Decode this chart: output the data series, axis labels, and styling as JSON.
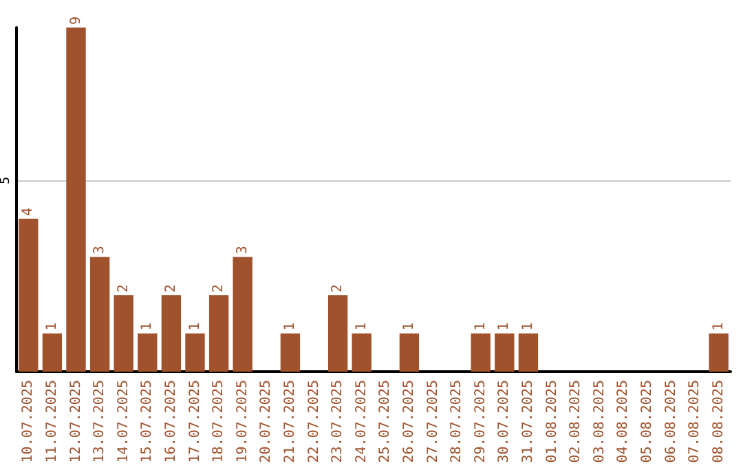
{
  "chart_data": {
    "type": "bar",
    "categories": [
      "10.07.2025",
      "11.07.2025",
      "12.07.2025",
      "13.07.2025",
      "14.07.2025",
      "15.07.2025",
      "16.07.2025",
      "17.07.2025",
      "18.07.2025",
      "19.07.2025",
      "20.07.2025",
      "21.07.2025",
      "22.07.2025",
      "23.07.2025",
      "24.07.2025",
      "25.07.2025",
      "26.07.2025",
      "27.07.2025",
      "28.07.2025",
      "29.07.2025",
      "30.07.2025",
      "31.07.2025",
      "01.08.2025",
      "02.08.2025",
      "03.08.2025",
      "04.08.2025",
      "05.08.2025",
      "06.08.2025",
      "07.08.2025",
      "08.08.2025"
    ],
    "values": [
      4,
      1,
      9,
      3,
      2,
      1,
      2,
      1,
      2,
      3,
      0,
      1,
      0,
      2,
      1,
      0,
      1,
      0,
      0,
      1,
      1,
      1,
      0,
      0,
      0,
      0,
      0,
      0,
      0,
      1
    ],
    "value_labels": [
      "4",
      "1",
      "9",
      "3",
      "2",
      "1",
      "2",
      "1",
      "2",
      "3",
      null,
      "1",
      null,
      "2",
      "1",
      null,
      "1",
      null,
      null,
      "1",
      "1",
      "1",
      null,
      null,
      null,
      null,
      null,
      null,
      null,
      "1"
    ],
    "color": "#a0522d",
    "ylim": [
      0,
      9
    ],
    "yticks": [
      5
    ],
    "grid": "y"
  }
}
